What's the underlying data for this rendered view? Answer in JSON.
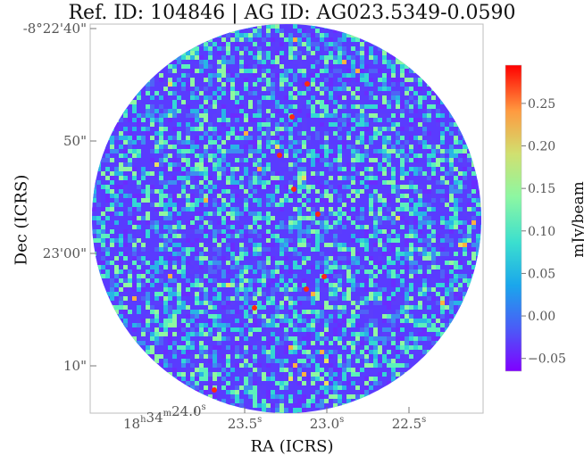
{
  "title": "Ref. ID: 104846 | AG ID: AG023.5349-0.0590",
  "chart_data": {
    "type": "heatmap",
    "title": "Ref. ID: 104846 | AG ID: AG023.5349-0.0590",
    "xlabel": "RA (ICRS)",
    "ylabel": "Dec (ICRS)",
    "x_ticks": [
      {
        "h": "18",
        "m": "34",
        "s": "24.0"
      },
      {
        "s": "23.5"
      },
      {
        "s": "23.0"
      },
      {
        "s": "22.5"
      }
    ],
    "y_ticks": [
      "-8°22'40\"",
      "50\"",
      "23'00\"",
      "10\""
    ],
    "colorbar": {
      "label": "mJy/beam",
      "range": [
        -0.065,
        0.295
      ],
      "ticks": [
        "0.25",
        "0.20",
        "0.15",
        "0.10",
        "0.05",
        "0.00",
        "−0.05"
      ],
      "tick_values": [
        0.25,
        0.2,
        0.15,
        0.1,
        0.05,
        0.0,
        -0.05
      ],
      "colormap": "rainbow"
    },
    "field": "circular",
    "grid": false
  }
}
